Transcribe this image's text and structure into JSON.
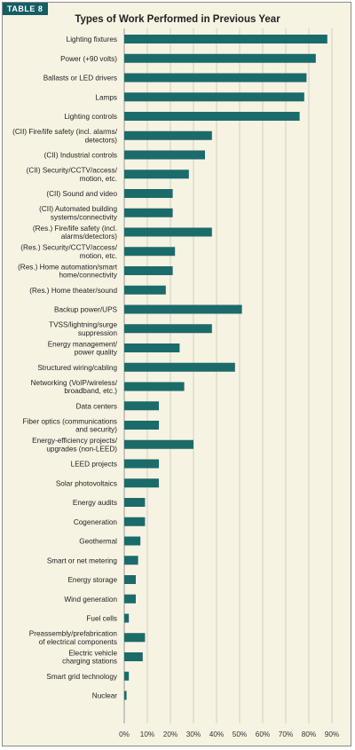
{
  "table_label": "TABLE 8",
  "chart_data": {
    "type": "bar",
    "orientation": "horizontal",
    "title": "Types of Work Performed in Previous Year",
    "bar_color": "#1c6b6b",
    "xlim": [
      0,
      90
    ],
    "x_ticks": [
      "0%",
      "10%",
      "20%",
      "30%",
      "40%",
      "50%",
      "60%",
      "70%",
      "80%",
      "90%"
    ],
    "grid": "vertical",
    "categories": [
      "Lighting fixtures",
      "Power (+90 volts)",
      "Ballasts or LED drivers",
      "Lamps",
      "Lighting controls",
      "(CII) Fire/life safety (incl. alarms/\ndetectors)",
      "(CII) Industrial controls",
      "(CII) Security/CCTV/access/\nmotion, etc.",
      "(CII) Sound and video",
      "(CII) Automated building\nsystems/connectivity",
      "(Res.) Fire/life safety (incl.\nalarms/detectors)",
      "(Res.) Security/CCTV/access/\nmotion, etc.",
      "(Res.) Home automation/smart\nhome/connectivity",
      "(Res.) Home theater/sound",
      "Backup power/UPS",
      "TVSS/lightning/surge\nsuppression",
      "Energy management/\npower quality",
      "Structured wiring/cabling",
      "Networking (VoIP/wireless/\nbroadband, etc.)",
      "Data centers",
      "Fiber optics (communications\nand security)",
      "Energy-efficiency projects/\nupgrades (non-LEED)",
      "LEED projects",
      "Solar photovoltaics",
      "Energy audits",
      "Cogeneration",
      "Geothermal",
      "Smart or net metering",
      "Energy storage",
      "Wind generation",
      "Fuel cells",
      "Preassembly/prefabrication\nof electrical components",
      "Electric vehicle\ncharging stations",
      "Smart grid technology",
      "Nuclear"
    ],
    "values": [
      88,
      83,
      79,
      78,
      76,
      38,
      35,
      28,
      21,
      21,
      38,
      22,
      21,
      18,
      51,
      38,
      24,
      48,
      26,
      15,
      15,
      30,
      15,
      15,
      9,
      9,
      7,
      6,
      5,
      5,
      2,
      9,
      8,
      2,
      1
    ]
  }
}
